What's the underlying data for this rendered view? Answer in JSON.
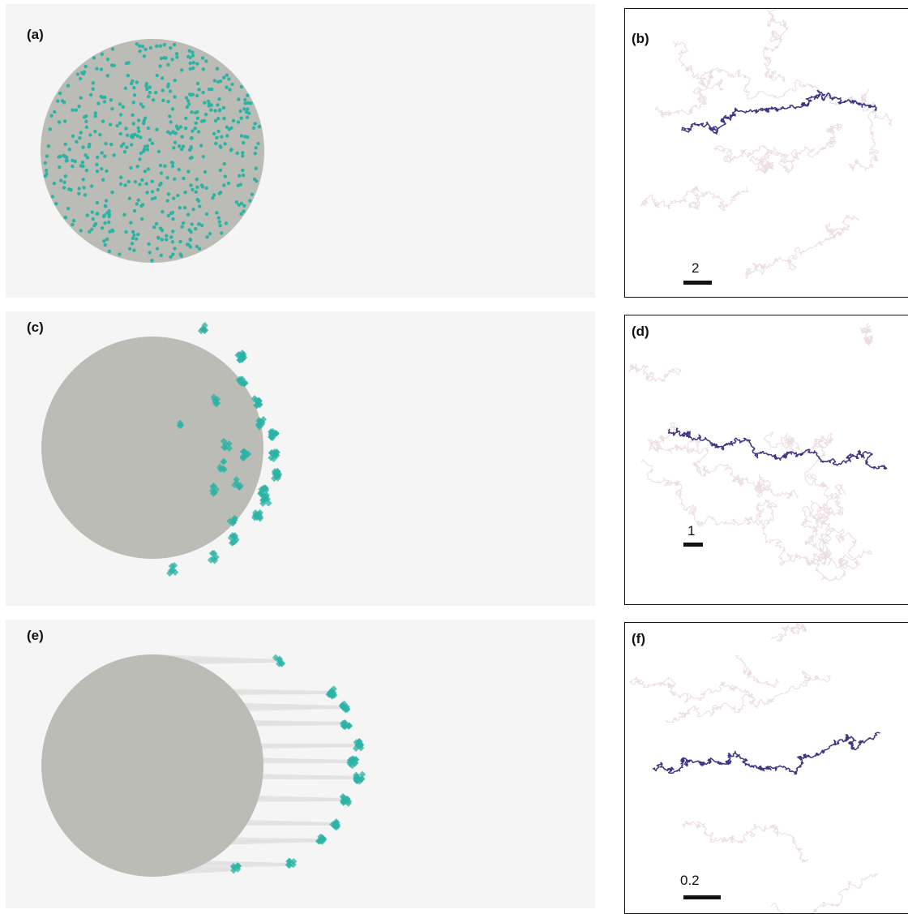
{
  "panels": {
    "a": {
      "label": "(a)"
    },
    "b": {
      "label": "(b)",
      "scale_label": "2"
    },
    "c": {
      "label": "(c)"
    },
    "d": {
      "label": "(d)",
      "scale_label": "1"
    },
    "e": {
      "label": "(e)"
    },
    "f": {
      "label": "(f)",
      "scale_label": "0.2"
    }
  },
  "colors": {
    "panel_bg": "#f5f5f5",
    "disc": "#bcbcb6",
    "particle": "#2bb3a5",
    "trail": "#e2e2e2",
    "highlight_path": "#3c3585",
    "background_paths": "#ecdde2"
  }
}
